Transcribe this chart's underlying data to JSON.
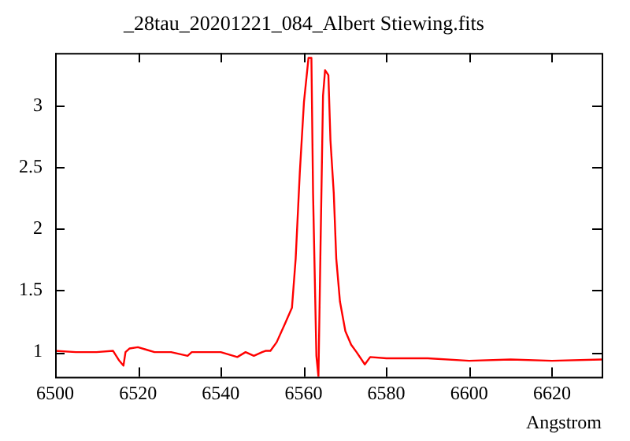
{
  "chart_data": {
    "type": "line",
    "title": "_28tau_20201221_084_Albert Stiewing.fits",
    "xlabel": "Angstrom",
    "x": [
      6500,
      6505,
      6510,
      6514,
      6515.5,
      6516.5,
      6517,
      6518,
      6520,
      6522,
      6524,
      6528,
      6532,
      6533,
      6540,
      6544,
      6546,
      6548,
      6550,
      6550.8,
      6552,
      6553.5,
      6555.5,
      6557.2,
      6558.1,
      6559.1,
      6560.1,
      6561.2,
      6561.9,
      6562.3,
      6563.1,
      6563.6,
      6564.1,
      6564.7,
      6565.2,
      6566,
      6566.5,
      6567.3,
      6567.9,
      6568.8,
      6570.1,
      6571.5,
      6572.8,
      6574.8,
      6576.1,
      6580,
      6590,
      6600,
      6610,
      6620,
      6632
    ],
    "series": [
      {
        "color": "#ff0000",
        "values": [
          1.01,
          1.0,
          1.0,
          1.01,
          0.93,
          0.89,
          1.0,
          1.03,
          1.04,
          1.02,
          1.0,
          1.0,
          0.97,
          1.0,
          1.0,
          0.96,
          1.0,
          0.97,
          1.0,
          1.01,
          1.01,
          1.08,
          1.23,
          1.36,
          1.76,
          2.46,
          3.03,
          3.39,
          3.39,
          2.29,
          0.97,
          0.8,
          1.85,
          3.08,
          3.29,
          3.25,
          2.72,
          2.29,
          1.76,
          1.41,
          1.17,
          1.06,
          1.0,
          0.9,
          0.96,
          0.95,
          0.95,
          0.93,
          0.94,
          0.93,
          0.94
        ]
      }
    ],
    "xlim": [
      6500,
      6632
    ],
    "ylim": [
      0.8,
      3.43
    ],
    "xticks": [
      6500,
      6520,
      6540,
      6560,
      6580,
      6600,
      6620
    ],
    "yticks": [
      1,
      1.5,
      2,
      2.5,
      3
    ],
    "grid": false,
    "legend": false,
    "marker": "none",
    "line_style": "solid"
  }
}
